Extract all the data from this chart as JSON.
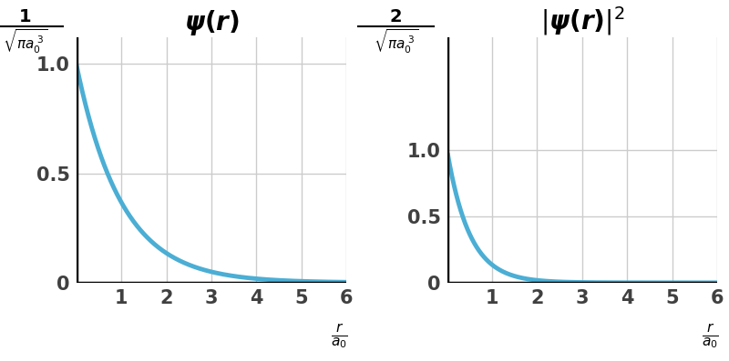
{
  "title1": "$\\boldsymbol{\\psi(r)}$",
  "title2": "$|\\boldsymbol{\\psi(r)}|^2$",
  "xlim": [
    0,
    6
  ],
  "ylim1": [
    0,
    1.12
  ],
  "ylim2": [
    0,
    1.85
  ],
  "xticks": [
    1,
    2,
    3,
    4,
    5,
    6
  ],
  "yticks": [
    0,
    0.5,
    1.0
  ],
  "curve_color": "#4BAED4",
  "curve_lw": 3.5,
  "grid_color": "#cccccc",
  "tick_label_color": "#404040",
  "tick_fontsize": 15,
  "title_fontsize": 20,
  "bg_color": "#ffffff",
  "ylabel1_num": "1",
  "ylabel2_num": "2"
}
